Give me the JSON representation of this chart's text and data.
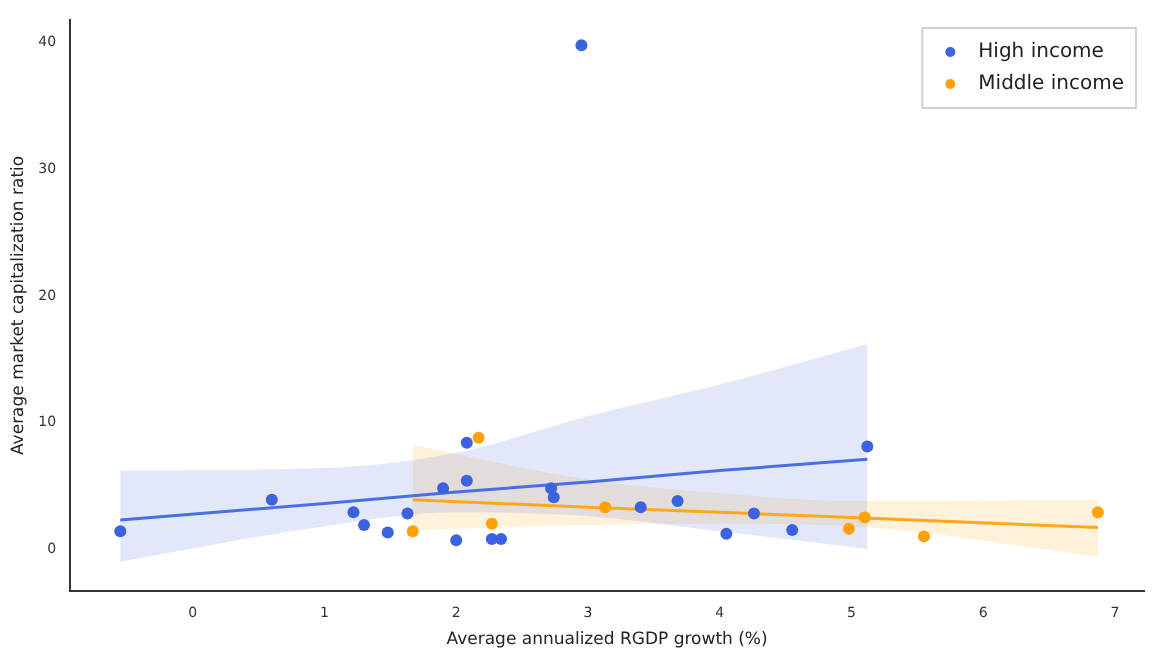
{
  "chart_data": {
    "type": "scatter",
    "xlabel": "Average annualized RGDP growth (%)",
    "ylabel": "Average market capitalization ratio",
    "xlim": [
      -0.93,
      7.22
    ],
    "ylim": [
      -3.3,
      41.8
    ],
    "xticks": [
      0,
      1,
      2,
      3,
      4,
      5,
      6,
      7
    ],
    "yticks": [
      0,
      10,
      20,
      30,
      40
    ],
    "grid": false,
    "legend": "top right",
    "marker": "circle",
    "series": [
      {
        "name": "High income",
        "color": "#3b62e0",
        "x": [
          -0.55,
          0.6,
          1.22,
          1.3,
          1.48,
          1.63,
          1.9,
          2.0,
          2.08,
          2.08,
          2.27,
          2.34,
          2.72,
          2.74,
          2.95,
          3.4,
          3.68,
          4.05,
          4.26,
          4.55,
          5.12
        ],
        "values": [
          1.4,
          3.9,
          2.9,
          1.9,
          1.3,
          2.8,
          4.8,
          0.7,
          8.4,
          5.4,
          0.8,
          0.8,
          4.8,
          4.1,
          39.8,
          3.3,
          3.8,
          1.2,
          2.8,
          1.5,
          8.1
        ]
      },
      {
        "name": "Middle income",
        "color": "#ffa200",
        "x": [
          1.67,
          2.17,
          2.27,
          3.13,
          4.98,
          5.1,
          5.55,
          6.87
        ],
        "values": [
          1.4,
          8.8,
          2.0,
          3.3,
          1.6,
          2.5,
          1.0,
          2.9
        ]
      },
      {
        "type": "line",
        "color": "#4a6fe3",
        "marker": "none",
        "x": [
          -0.55,
          1,
          2,
          3,
          4,
          5.12
        ],
        "values": [
          2.3,
          3.6,
          4.5,
          5.3,
          6.2,
          7.1
        ],
        "lower": [
          -1.0,
          1.8,
          2.9,
          2.6,
          1.4,
          0.0
        ],
        "upper": [
          6.2,
          6.4,
          7.6,
          10.5,
          13,
          16.2
        ]
      },
      {
        "type": "line",
        "color": "#ffa71a",
        "marker": "none",
        "x": [
          1.67,
          3,
          4,
          5,
          6.87
        ],
        "values": [
          3.9,
          3.3,
          2.9,
          2.5,
          1.7
        ],
        "lower": [
          1.5,
          1.9,
          2.0,
          1.8,
          -0.6
        ],
        "upper": [
          8.2,
          5.5,
          4.4,
          3.8,
          3.9
        ]
      }
    ]
  }
}
